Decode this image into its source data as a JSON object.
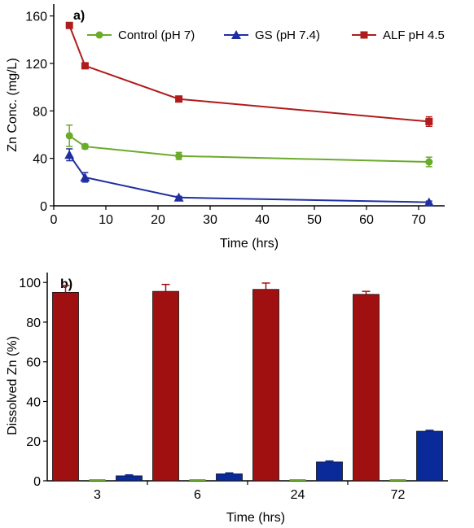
{
  "chart_data": [
    {
      "type": "line",
      "panel_label": "a)",
      "xlabel": "Time (hrs)",
      "ylabel": "Zn Conc. (mg/L)",
      "xlim": [
        0,
        75
      ],
      "ylim": [
        0,
        170
      ],
      "xticks": [
        0,
        10,
        20,
        30,
        40,
        50,
        60,
        70
      ],
      "yticks": [
        0,
        40,
        80,
        120,
        160
      ],
      "legend_position": "top",
      "series": [
        {
          "name": "Control (pH 7)",
          "color": "#6aab2a",
          "marker": "circle",
          "x": [
            3,
            6,
            24,
            72
          ],
          "y": [
            59,
            50,
            42,
            37
          ],
          "err": [
            9,
            2,
            3,
            4
          ]
        },
        {
          "name": "GS (pH 7.4)",
          "color": "#1f2fa0",
          "marker": "triangle",
          "x": [
            3,
            6,
            24,
            72
          ],
          "y": [
            43,
            24,
            7,
            3
          ],
          "err": [
            5,
            4,
            1,
            1
          ]
        },
        {
          "name": "ALF pH 4.5",
          "color": "#b01c1c",
          "marker": "square",
          "x": [
            3,
            6,
            24,
            72
          ],
          "y": [
            152,
            118,
            90,
            71
          ],
          "err": [
            2,
            2,
            2,
            4
          ]
        }
      ]
    },
    {
      "type": "bar",
      "panel_label": "b)",
      "xlabel": "Time (hrs)",
      "ylabel": "Dissolved Zn (%)",
      "ylim": [
        0,
        105
      ],
      "yticks": [
        0,
        20,
        40,
        60,
        80,
        100
      ],
      "categories": [
        "3",
        "6",
        "24",
        "72"
      ],
      "series": [
        {
          "color": "#a01010",
          "values": [
            95,
            95.5,
            96.5,
            94
          ],
          "err": [
            3.5,
            3.5,
            3.2,
            1.5
          ]
        },
        {
          "color": "#6aab2a",
          "values": [
            0,
            0,
            0,
            0
          ],
          "err": [
            0,
            0,
            0,
            0
          ]
        },
        {
          "color": "#0a2a9a",
          "values": [
            2.5,
            3.5,
            9.5,
            25
          ],
          "err": [
            0.5,
            0.5,
            0.5,
            0.5
          ]
        }
      ]
    }
  ]
}
